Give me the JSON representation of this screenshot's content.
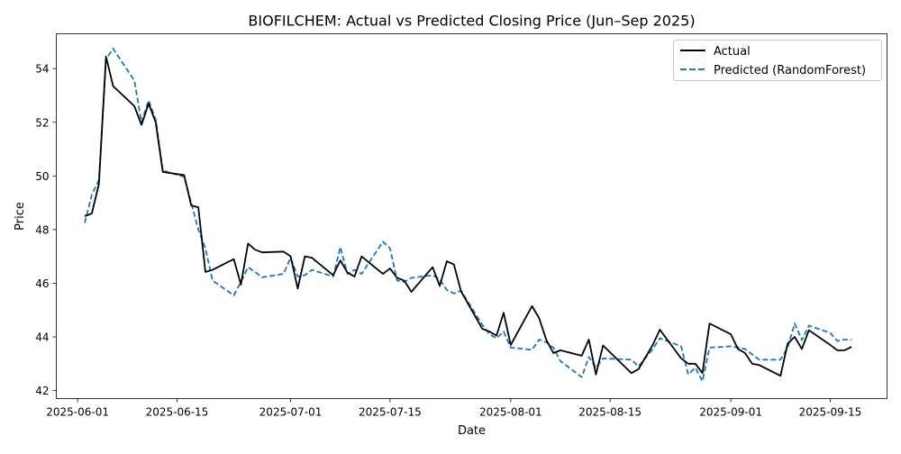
{
  "chart_data": {
    "type": "line",
    "title": "BIOFILCHEM: Actual vs Predicted Closing Price (Jun–Sep 2025)",
    "xlabel": "Date",
    "ylabel": "Price",
    "xlim": [
      "2025-05-29",
      "2025-09-23"
    ],
    "ylim": [
      41.7,
      55.3
    ],
    "xticks": [
      "2025-06-01",
      "2025-06-15",
      "2025-07-01",
      "2025-07-15",
      "2025-08-01",
      "2025-08-15",
      "2025-09-01",
      "2025-09-15"
    ],
    "yticks": [
      42,
      44,
      46,
      48,
      50,
      52,
      54
    ],
    "grid": false,
    "legend": {
      "position": "upper right",
      "entries": [
        "Actual",
        "Predicted (RandomForest)"
      ]
    },
    "colors": {
      "actual": "#000000",
      "predicted": "#1f77b4"
    },
    "series": [
      {
        "name": "Actual",
        "style": "solid",
        "points": [
          [
            "2025-06-02",
            48.5
          ],
          [
            "2025-06-03",
            48.6
          ],
          [
            "2025-06-04",
            49.7
          ],
          [
            "2025-06-05",
            54.45
          ],
          [
            "2025-06-06",
            53.35
          ],
          [
            "2025-06-09",
            52.6
          ],
          [
            "2025-06-10",
            51.9
          ],
          [
            "2025-06-11",
            52.7
          ],
          [
            "2025-06-12",
            52.0
          ],
          [
            "2025-06-13",
            50.15
          ],
          [
            "2025-06-16",
            50.03
          ],
          [
            "2025-06-17",
            48.9
          ],
          [
            "2025-06-18",
            48.83
          ],
          [
            "2025-06-19",
            46.42
          ],
          [
            "2025-06-20",
            46.5
          ],
          [
            "2025-06-23",
            46.9
          ],
          [
            "2025-06-24",
            45.95
          ],
          [
            "2025-06-25",
            47.48
          ],
          [
            "2025-06-26",
            47.25
          ],
          [
            "2025-06-27",
            47.15
          ],
          [
            "2025-06-30",
            47.18
          ],
          [
            "2025-07-01",
            47.0
          ],
          [
            "2025-07-02",
            45.8
          ],
          [
            "2025-07-03",
            47.0
          ],
          [
            "2025-07-04",
            46.95
          ],
          [
            "2025-07-07",
            46.3
          ],
          [
            "2025-07-08",
            46.85
          ],
          [
            "2025-07-09",
            46.4
          ],
          [
            "2025-07-10",
            46.25
          ],
          [
            "2025-07-11",
            47.0
          ],
          [
            "2025-07-14",
            46.35
          ],
          [
            "2025-07-15",
            46.55
          ],
          [
            "2025-07-16",
            46.2
          ],
          [
            "2025-07-17",
            46.1
          ],
          [
            "2025-07-18",
            45.68
          ],
          [
            "2025-07-21",
            46.6
          ],
          [
            "2025-07-22",
            45.9
          ],
          [
            "2025-07-23",
            46.82
          ],
          [
            "2025-07-24",
            46.7
          ],
          [
            "2025-07-25",
            45.7
          ],
          [
            "2025-07-28",
            44.3
          ],
          [
            "2025-07-29",
            44.2
          ],
          [
            "2025-07-30",
            44.05
          ],
          [
            "2025-07-31",
            44.9
          ],
          [
            "2025-08-01",
            43.7
          ],
          [
            "2025-08-04",
            45.15
          ],
          [
            "2025-08-05",
            44.7
          ],
          [
            "2025-08-06",
            43.9
          ],
          [
            "2025-08-07",
            43.4
          ],
          [
            "2025-08-08",
            43.5
          ],
          [
            "2025-08-11",
            43.3
          ],
          [
            "2025-08-12",
            43.9
          ],
          [
            "2025-08-13",
            42.6
          ],
          [
            "2025-08-14",
            43.68
          ],
          [
            "2025-08-18",
            42.65
          ],
          [
            "2025-08-19",
            42.8
          ],
          [
            "2025-08-21",
            43.7
          ],
          [
            "2025-08-22",
            44.27
          ],
          [
            "2025-08-25",
            43.2
          ],
          [
            "2025-08-26",
            43.0
          ],
          [
            "2025-08-27",
            43.0
          ],
          [
            "2025-08-28",
            42.65
          ],
          [
            "2025-08-29",
            44.5
          ],
          [
            "2025-09-01",
            44.1
          ],
          [
            "2025-09-02",
            43.55
          ],
          [
            "2025-09-03",
            43.4
          ],
          [
            "2025-09-04",
            43.0
          ],
          [
            "2025-09-05",
            42.95
          ],
          [
            "2025-09-08",
            42.55
          ],
          [
            "2025-09-09",
            43.75
          ],
          [
            "2025-09-10",
            44.0
          ],
          [
            "2025-09-11",
            43.55
          ],
          [
            "2025-09-12",
            44.25
          ],
          [
            "2025-09-15",
            43.7
          ],
          [
            "2025-09-16",
            43.5
          ],
          [
            "2025-09-17",
            43.5
          ],
          [
            "2025-09-18",
            43.63
          ]
        ]
      },
      {
        "name": "Predicted (RandomForest)",
        "style": "dashed",
        "points": [
          [
            "2025-06-02",
            48.25
          ],
          [
            "2025-06-03",
            49.3
          ],
          [
            "2025-06-04",
            49.85
          ],
          [
            "2025-06-05",
            54.35
          ],
          [
            "2025-06-06",
            54.75
          ],
          [
            "2025-06-09",
            53.55
          ],
          [
            "2025-06-10",
            52.0
          ],
          [
            "2025-06-11",
            52.82
          ],
          [
            "2025-06-12",
            52.1
          ],
          [
            "2025-06-13",
            50.2
          ],
          [
            "2025-06-16",
            49.97
          ],
          [
            "2025-06-17",
            49.0
          ],
          [
            "2025-06-18",
            48.0
          ],
          [
            "2025-06-19",
            47.3
          ],
          [
            "2025-06-20",
            46.1
          ],
          [
            "2025-06-23",
            45.55
          ],
          [
            "2025-06-24",
            46.05
          ],
          [
            "2025-06-25",
            46.6
          ],
          [
            "2025-06-26",
            46.42
          ],
          [
            "2025-06-27",
            46.22
          ],
          [
            "2025-06-30",
            46.35
          ],
          [
            "2025-07-01",
            46.95
          ],
          [
            "2025-07-02",
            46.25
          ],
          [
            "2025-07-03",
            46.3
          ],
          [
            "2025-07-04",
            46.5
          ],
          [
            "2025-07-07",
            46.25
          ],
          [
            "2025-07-08",
            47.35
          ],
          [
            "2025-07-09",
            46.35
          ],
          [
            "2025-07-10",
            46.5
          ],
          [
            "2025-07-11",
            46.35
          ],
          [
            "2025-07-14",
            47.55
          ],
          [
            "2025-07-15",
            47.3
          ],
          [
            "2025-07-16",
            46.1
          ],
          [
            "2025-07-17",
            46.05
          ],
          [
            "2025-07-18",
            46.2
          ],
          [
            "2025-07-21",
            46.3
          ],
          [
            "2025-07-22",
            46.15
          ],
          [
            "2025-07-23",
            45.75
          ],
          [
            "2025-07-24",
            45.62
          ],
          [
            "2025-07-25",
            45.72
          ],
          [
            "2025-07-28",
            44.45
          ],
          [
            "2025-07-29",
            44.1
          ],
          [
            "2025-07-30",
            43.95
          ],
          [
            "2025-07-31",
            44.2
          ],
          [
            "2025-08-01",
            43.6
          ],
          [
            "2025-08-04",
            43.52
          ],
          [
            "2025-08-05",
            43.9
          ],
          [
            "2025-08-06",
            43.8
          ],
          [
            "2025-08-07",
            43.6
          ],
          [
            "2025-08-08",
            43.1
          ],
          [
            "2025-08-11",
            42.5
          ],
          [
            "2025-08-12",
            43.25
          ],
          [
            "2025-08-13",
            42.85
          ],
          [
            "2025-08-14",
            43.2
          ],
          [
            "2025-08-18",
            43.15
          ],
          [
            "2025-08-19",
            42.9
          ],
          [
            "2025-08-21",
            43.55
          ],
          [
            "2025-08-22",
            43.95
          ],
          [
            "2025-08-25",
            43.65
          ],
          [
            "2025-08-26",
            42.6
          ],
          [
            "2025-08-27",
            42.85
          ],
          [
            "2025-08-28",
            42.35
          ],
          [
            "2025-08-29",
            43.6
          ],
          [
            "2025-09-01",
            43.65
          ],
          [
            "2025-09-02",
            43.6
          ],
          [
            "2025-09-03",
            43.55
          ],
          [
            "2025-09-04",
            43.35
          ],
          [
            "2025-09-05",
            43.15
          ],
          [
            "2025-09-08",
            43.15
          ],
          [
            "2025-09-09",
            43.6
          ],
          [
            "2025-09-10",
            44.5
          ],
          [
            "2025-09-11",
            43.88
          ],
          [
            "2025-09-12",
            44.42
          ],
          [
            "2025-09-15",
            44.15
          ],
          [
            "2025-09-16",
            43.85
          ],
          [
            "2025-09-17",
            43.9
          ],
          [
            "2025-09-18",
            43.9
          ]
        ]
      }
    ]
  }
}
